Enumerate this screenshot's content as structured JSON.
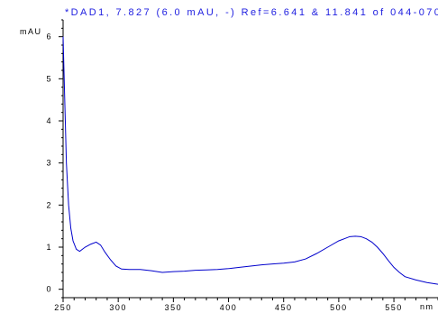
{
  "chart_data": {
    "type": "line",
    "title": "*DAD1, 7.827 (6.0 mAU, -) Ref=6.641 & 11.841 of 044-070",
    "xlabel": "nm",
    "ylabel": "mAU",
    "xlim": [
      250,
      590
    ],
    "ylim": [
      -0.2,
      6.4
    ],
    "x_ticks": [
      250,
      300,
      350,
      400,
      450,
      500,
      550
    ],
    "y_ticks": [
      0,
      1,
      2,
      3,
      4,
      5,
      6
    ],
    "grid": false,
    "colors": {
      "series": "#0000cc",
      "title": "#2020e0",
      "axis": "#000000"
    },
    "series": [
      {
        "x": [
          250,
          251,
          252,
          253,
          255,
          257,
          259,
          262,
          265,
          270,
          275,
          280,
          284,
          288,
          293,
          298,
          303,
          310,
          320,
          330,
          340,
          350,
          360,
          370,
          380,
          390,
          400,
          410,
          420,
          430,
          440,
          450,
          460,
          470,
          480,
          490,
          500,
          505,
          510,
          515,
          520,
          525,
          530,
          535,
          540,
          545,
          550,
          555,
          560,
          570,
          580,
          590
        ],
        "y": [
          6.0,
          5.0,
          4.0,
          3.0,
          2.0,
          1.45,
          1.15,
          0.95,
          0.9,
          1.0,
          1.07,
          1.12,
          1.05,
          0.88,
          0.7,
          0.55,
          0.48,
          0.47,
          0.47,
          0.44,
          0.4,
          0.42,
          0.43,
          0.45,
          0.46,
          0.47,
          0.49,
          0.52,
          0.55,
          0.58,
          0.6,
          0.62,
          0.65,
          0.72,
          0.85,
          1.0,
          1.15,
          1.2,
          1.25,
          1.26,
          1.25,
          1.2,
          1.12,
          1.0,
          0.85,
          0.68,
          0.52,
          0.4,
          0.3,
          0.22,
          0.16,
          0.12
        ]
      }
    ]
  }
}
